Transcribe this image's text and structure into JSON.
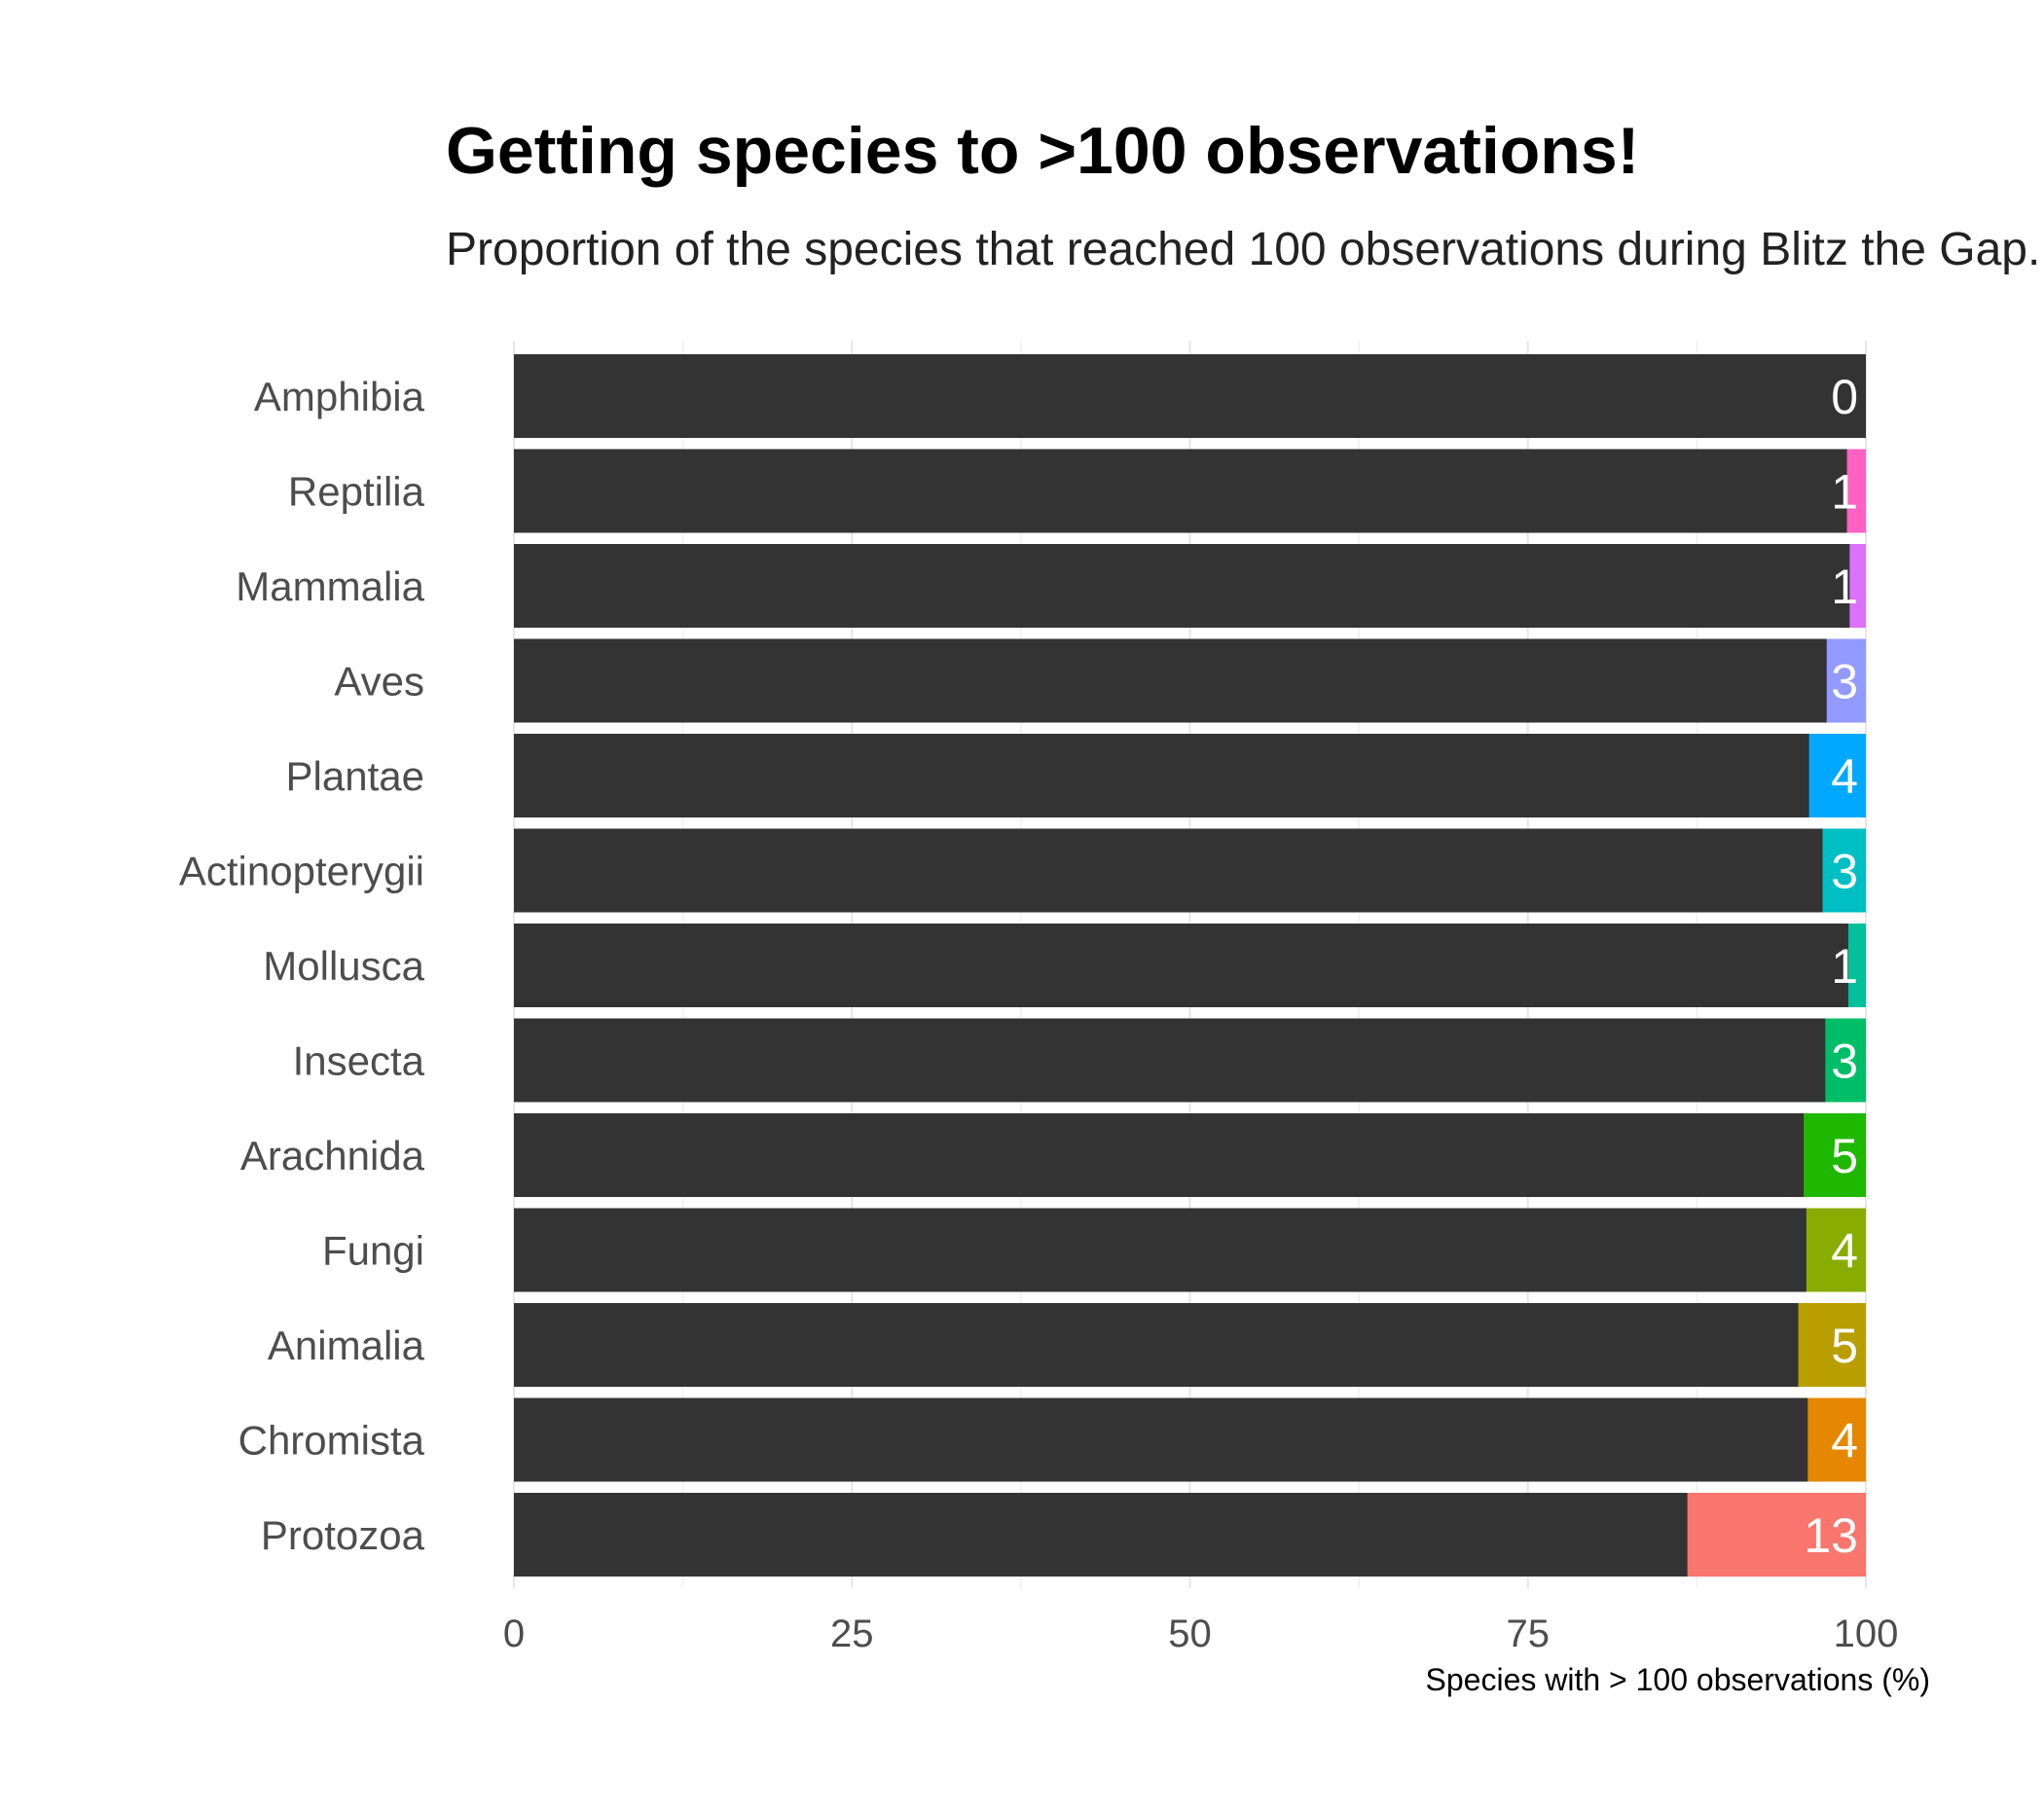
{
  "chart_data": {
    "type": "bar",
    "orientation": "horizontal",
    "stacked": true,
    "title": "Getting species to >100 observations!",
    "subtitle": "Proportion of the species that reached 100 observations during Blitz the Gap.",
    "xlabel": "Species with > 100 observations (%)",
    "ylabel": "",
    "xlim": [
      0,
      100
    ],
    "x_ticks": [
      0,
      25,
      50,
      75,
      100
    ],
    "grid": true,
    "legend": "none",
    "background_color": "#333333",
    "categories": [
      "Amphibia",
      "Reptilia",
      "Mammalia",
      "Aves",
      "Plantae",
      "Actinopterygii",
      "Mollusca",
      "Insecta",
      "Arachnida",
      "Fungi",
      "Animalia",
      "Chromista",
      "Protozoa"
    ],
    "values": [
      0,
      1.4,
      1.2,
      2.9,
      4.2,
      3.2,
      1.3,
      3.0,
      4.6,
      4.4,
      5.0,
      4.3,
      13.2
    ],
    "labels": [
      "0",
      "1",
      "1",
      "3",
      "4",
      "3",
      "1",
      "3",
      "5",
      "4",
      "5",
      "4",
      "13"
    ],
    "colors": [
      "#333333",
      "#FF61C3",
      "#DB72FB",
      "#939AFF",
      "#00A9FF",
      "#00BFC4",
      "#00C19A",
      "#00BE67",
      "#1FB800",
      "#89AC00",
      "#BA9E00",
      "#E58700",
      "#F8766D"
    ]
  }
}
